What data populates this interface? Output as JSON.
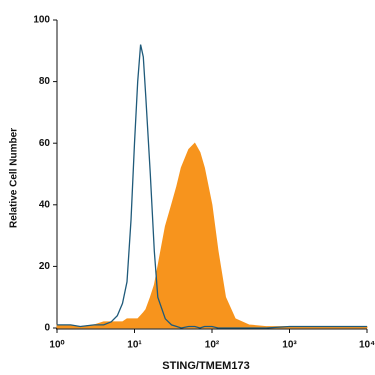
{
  "chart_data": {
    "type": "line",
    "x_label": "STING/TMEM173",
    "y_label": "Relative Cell Number",
    "log_x": true,
    "x": [
      1,
      1.5,
      2,
      3,
      4,
      5,
      6,
      7,
      8,
      9,
      10,
      11,
      12,
      13,
      14,
      16,
      18,
      20,
      25,
      30,
      35,
      40,
      50,
      60,
      70,
      80,
      100,
      120,
      150,
      200,
      300,
      500,
      1000,
      10000
    ],
    "series": [
      {
        "color": "#f7941d",
        "fill": true,
        "values": [
          1,
          1,
          0.5,
          1,
          2,
          2,
          2,
          2,
          3,
          3,
          3,
          3,
          4,
          5,
          6,
          10,
          14,
          20,
          33,
          40,
          46,
          52,
          58,
          60,
          57,
          52,
          40,
          25,
          10,
          3,
          1,
          0.5,
          0.5,
          0.5
        ]
      },
      {
        "color": "#1f5a7a",
        "fill": false,
        "values": [
          1,
          1,
          0.5,
          1,
          1,
          2,
          4,
          8,
          15,
          35,
          60,
          80,
          92,
          88,
          75,
          50,
          25,
          10,
          3,
          1,
          0.5,
          0,
          0.5,
          0.5,
          0,
          0.5,
          0.5,
          0,
          0,
          0,
          0,
          0,
          0.5,
          0.5
        ]
      }
    ],
    "xlim": [
      1,
      10000
    ],
    "xticks": [
      {
        "value": 1,
        "label": "10⁰"
      },
      {
        "value": 10,
        "label": "10¹"
      },
      {
        "value": 100,
        "label": "10²"
      },
      {
        "value": 1000,
        "label": "10³"
      },
      {
        "value": 10000,
        "label": "10⁴"
      }
    ],
    "ylim": [
      0,
      100
    ],
    "yticks": [
      0,
      20,
      40,
      60,
      80,
      100
    ]
  }
}
